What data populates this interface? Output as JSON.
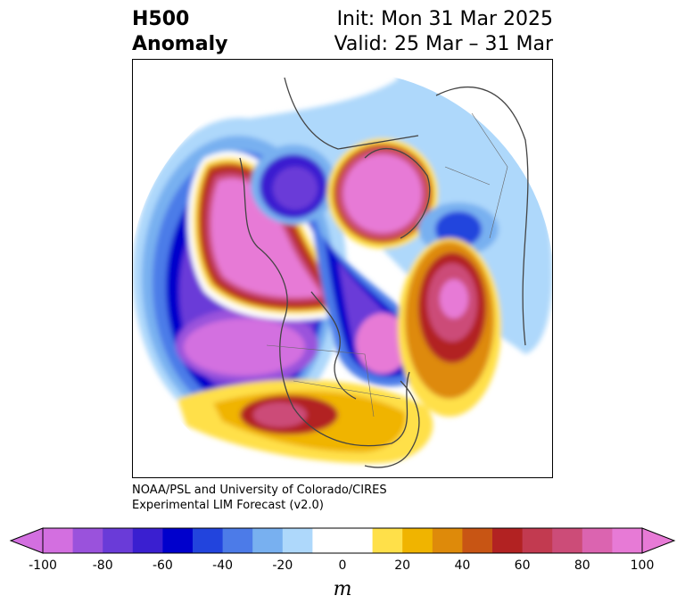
{
  "title": {
    "left_line1": "H500",
    "left_line2": "Anomaly",
    "right_line1": "Init: Mon 31 Mar 2025",
    "right_line2": "Valid: 25 Mar – 31 Mar"
  },
  "credit": {
    "line1": "NOAA/PSL and University of Colorado/CIRES",
    "line2": "Experimental LIM Forecast (v2.0)"
  },
  "colorbar": {
    "unit": "m",
    "ticks": [
      "-100",
      "-80",
      "-60",
      "-40",
      "-20",
      "0",
      "20",
      "40",
      "60",
      "80",
      "100"
    ],
    "colors": [
      "#d36fe0",
      "#9a52dc",
      "#6a3bd8",
      "#3a1fd0",
      "#0000cc",
      "#2244dd",
      "#4c7be8",
      "#78b0f0",
      "#aed8fb",
      "#ffffff",
      "#ffffff",
      "#ffe049",
      "#f0b400",
      "#de8a0a",
      "#c85514",
      "#b22222",
      "#c23a50",
      "#cc4c78",
      "#db64b0",
      "#e77ad6"
    ]
  }
}
